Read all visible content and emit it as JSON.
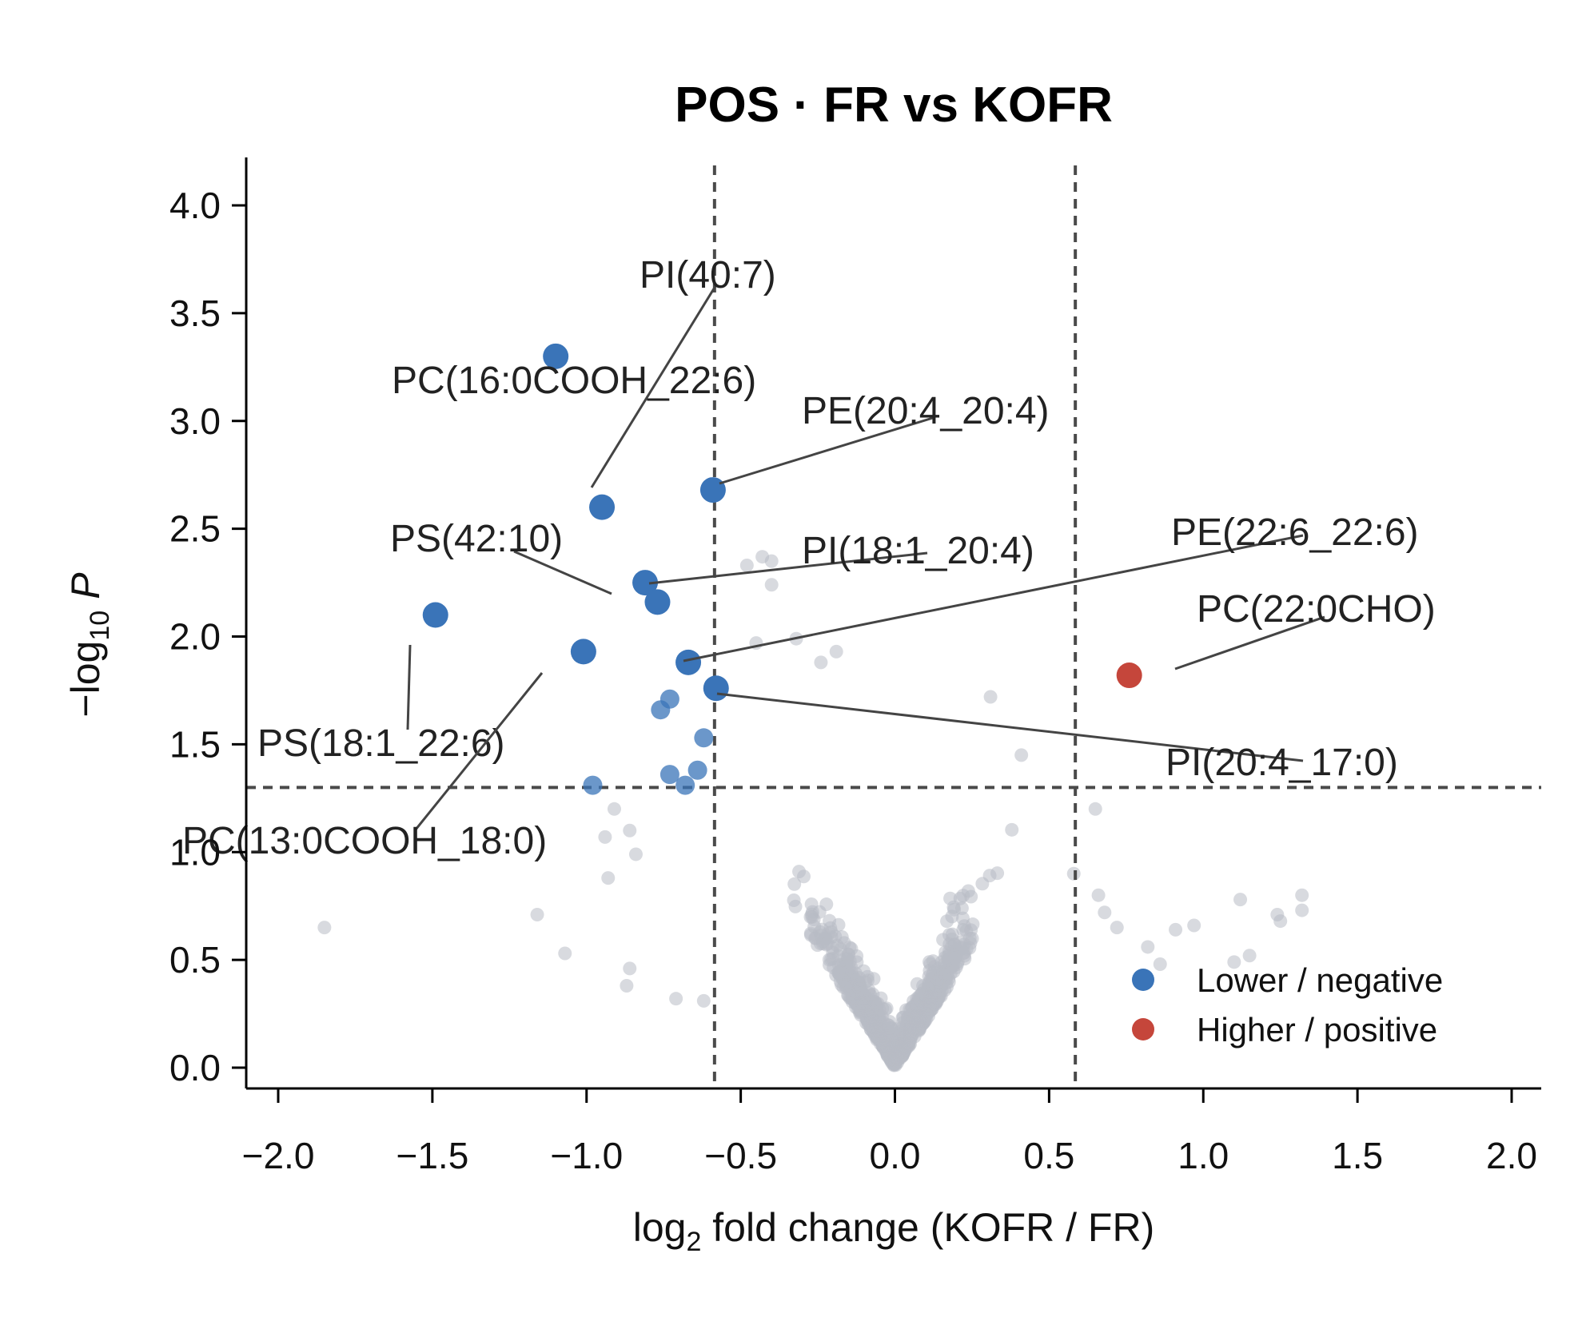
{
  "chart_data": {
    "type": "scatter",
    "title": "POS · FR vs KOFR",
    "xlabel": {
      "prefix": "log",
      "sub": "2",
      "suffix": " fold change (KOFR / FR)"
    },
    "ylabel": {
      "prefix": "−log",
      "sub": "10",
      "italic": "P"
    },
    "xlim": [
      -2.1,
      2.1
    ],
    "ylim": [
      -0.1,
      4.22
    ],
    "xticks": [
      -2.0,
      -1.5,
      -1.0,
      -0.5,
      0.0,
      0.5,
      1.0,
      1.5,
      2.0
    ],
    "xtick_labels": [
      "−2.0",
      "−1.5",
      "−1.0",
      "−0.5",
      "0.0",
      "0.5",
      "1.0",
      "1.5",
      "2.0"
    ],
    "yticks": [
      0.0,
      0.5,
      1.0,
      1.5,
      2.0,
      2.5,
      3.0,
      3.5,
      4.0
    ],
    "ytick_labels": [
      "0.0",
      "0.5",
      "1.0",
      "1.5",
      "2.0",
      "2.5",
      "3.0",
      "3.5",
      "4.0"
    ],
    "thresholds": {
      "fc_low": -0.585,
      "fc_high": 0.585,
      "p_line": 1.3
    },
    "colors": {
      "lower": "#3a74b8",
      "higher": "#c5463b",
      "ns": "#b8bcc4",
      "line": "#4a4a4a"
    },
    "legend": {
      "placement": "lower-right",
      "entries": [
        {
          "label": "Lower / negative",
          "color": "#3a74b8"
        },
        {
          "label": "Higher / positive",
          "color": "#c5463b"
        }
      ]
    },
    "series": [
      {
        "name": "Lower / negative",
        "points": [
          [
            -1.1,
            3.3
          ],
          [
            -0.95,
            2.6
          ],
          [
            -0.59,
            2.68
          ],
          [
            -0.81,
            2.25
          ],
          [
            -0.77,
            2.16
          ],
          [
            -1.49,
            2.1
          ],
          [
            -1.01,
            1.93
          ],
          [
            -0.67,
            1.88
          ],
          [
            -0.58,
            1.76
          ]
        ]
      },
      {
        "name": "Higher / positive",
        "points": [
          [
            0.76,
            1.82
          ]
        ]
      }
    ],
    "small_sig_points": [
      [
        -0.73,
        1.71
      ],
      [
        -0.76,
        1.66
      ],
      [
        -0.62,
        1.53
      ],
      [
        -0.73,
        1.36
      ],
      [
        -0.64,
        1.38
      ],
      [
        -0.68,
        1.31
      ],
      [
        -0.98,
        1.31
      ]
    ],
    "annotations": [
      {
        "label": "PI(40:7)",
        "point": [
          -0.95,
          2.6
        ]
      },
      {
        "label": "PC(16:0COOH_22:6)",
        "point": [
          -1.1,
          3.3
        ]
      },
      {
        "label": "PE(20:4_20:4)",
        "point": [
          -0.59,
          2.68
        ]
      },
      {
        "label": "PS(42:10)",
        "point": [
          -0.81,
          2.25
        ]
      },
      {
        "label": "PI(18:1_20:4)",
        "point": [
          -0.77,
          2.16
        ]
      },
      {
        "label": "PE(22:6_22:6)",
        "point": [
          -0.67,
          1.88
        ]
      },
      {
        "label": "PC(22:0CHO)",
        "point": [
          0.76,
          1.82
        ]
      },
      {
        "label": "PS(18:1_22:6)",
        "point": [
          -1.49,
          2.1
        ]
      },
      {
        "label": "PI(20:4_17:0)",
        "point": [
          -0.58,
          1.76
        ]
      },
      {
        "label": "PC(13:0COOH_18:0)",
        "point": [
          -1.01,
          1.93
        ]
      }
    ],
    "background_points": {
      "description": "non-significant features (dense grey cloud)",
      "explicit": [
        [
          -1.85,
          0.65
        ],
        [
          -1.16,
          0.71
        ],
        [
          -1.07,
          0.53
        ],
        [
          -0.86,
          0.46
        ],
        [
          -0.87,
          0.38
        ],
        [
          -0.71,
          0.32
        ],
        [
          -0.62,
          0.31
        ],
        [
          -0.91,
          1.2
        ],
        [
          -0.86,
          1.1
        ],
        [
          -0.94,
          1.07
        ],
        [
          -0.84,
          0.99
        ],
        [
          -0.93,
          0.88
        ],
        [
          -0.43,
          2.37
        ],
        [
          -0.4,
          2.35
        ],
        [
          -0.48,
          2.33
        ],
        [
          -0.4,
          2.24
        ],
        [
          -0.32,
          1.99
        ],
        [
          -0.45,
          1.97
        ],
        [
          -0.19,
          1.93
        ],
        [
          -0.24,
          1.88
        ],
        [
          0.31,
          1.72
        ],
        [
          0.41,
          1.45
        ],
        [
          0.65,
          1.2
        ],
        [
          0.91,
          0.64
        ],
        [
          1.12,
          0.78
        ],
        [
          1.15,
          0.52
        ],
        [
          1.1,
          0.49
        ],
        [
          1.24,
          0.71
        ],
        [
          1.32,
          0.8
        ],
        [
          1.32,
          0.73
        ],
        [
          1.25,
          0.68
        ],
        [
          0.97,
          0.66
        ],
        [
          0.82,
          0.56
        ],
        [
          0.86,
          0.48
        ],
        [
          0.66,
          0.8
        ],
        [
          0.72,
          0.65
        ],
        [
          0.68,
          0.72
        ],
        [
          0.58,
          0.9
        ]
      ]
    }
  }
}
